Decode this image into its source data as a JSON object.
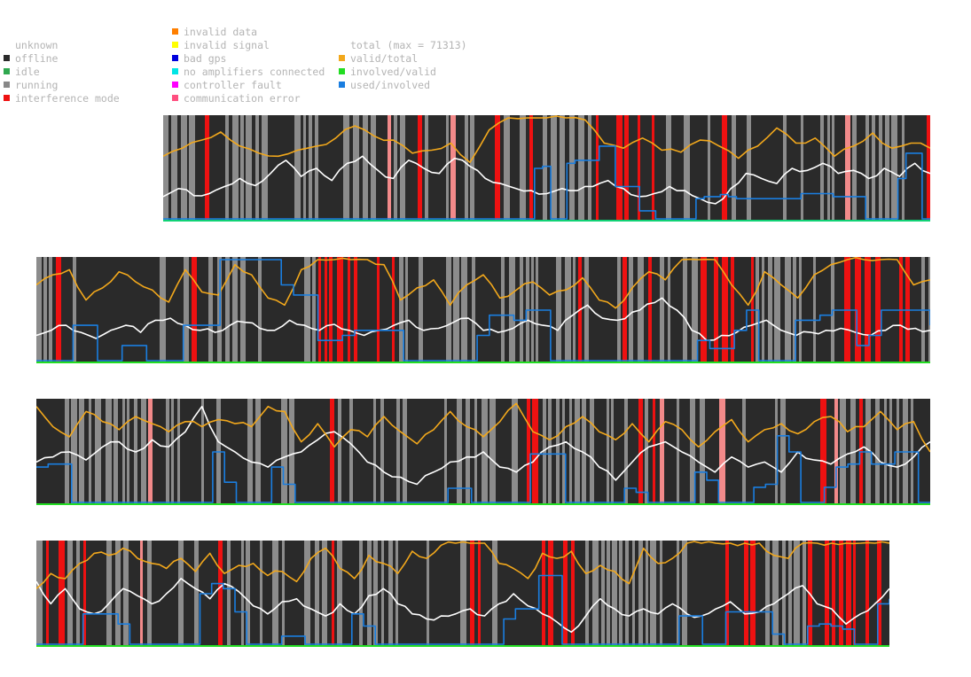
{
  "legend": {
    "status": [
      {
        "label": "unknown",
        "color": ""
      },
      {
        "label": "offline",
        "color": "#2a2a2a"
      },
      {
        "label": "idle",
        "color": "#2fa84f"
      },
      {
        "label": "running",
        "color": "#888888"
      },
      {
        "label": "interference mode",
        "color": "#ee1111"
      }
    ],
    "errors": [
      {
        "label": "invalid data",
        "color": "#ff7f00"
      },
      {
        "label": "invalid signal",
        "color": "#ffff00"
      },
      {
        "label": "bad gps",
        "color": "#0000dd"
      },
      {
        "label": "no amplifiers connected",
        "color": "#00e5e5"
      },
      {
        "label": "controller fault",
        "color": "#ff00ff"
      },
      {
        "label": "communication error",
        "color": "#ff4f80"
      }
    ],
    "lines": [
      {
        "label": "total (max = 71313)",
        "color": ""
      },
      {
        "label": "valid/total",
        "color": "#f2a81c"
      },
      {
        "label": "involved/valid",
        "color": "#22dd22"
      },
      {
        "label": "used/involved",
        "color": "#1a7ee0"
      }
    ]
  },
  "colors": {
    "offline": "#2a2a2a",
    "running": "#8c8c8c",
    "interference": "#ee1111",
    "interference_light": "#f28a8a",
    "total": "#ffffff",
    "valid_total": "#f2a81c",
    "involved_valid": "#22dd22",
    "used_involved": "#1a7ee0",
    "baseline_cyan": "#00c8c8"
  },
  "chart_data": [
    {
      "type": "line",
      "title": "",
      "series": [
        {
          "name": "total (max = 71313)",
          "color": "#ffffff",
          "values": [
            0.22,
            0.3,
            0.23,
            0.25,
            0.32,
            0.4,
            0.33,
            0.45,
            0.58,
            0.42,
            0.5,
            0.38,
            0.55,
            0.62,
            0.48,
            0.4,
            0.58,
            0.5,
            0.45,
            0.6,
            0.52,
            0.4,
            0.35,
            0.3,
            0.28,
            0.25,
            0.3,
            0.28,
            0.32,
            0.38,
            0.3,
            0.22,
            0.25,
            0.32,
            0.28,
            0.2,
            0.15,
            0.3,
            0.45,
            0.4,
            0.35,
            0.5,
            0.48,
            0.55,
            0.45,
            0.48,
            0.4,
            0.5,
            0.42,
            0.55,
            0.45
          ]
        },
        {
          "name": "valid/total",
          "color": "#f2a81c",
          "values": [
            0.62,
            0.7,
            0.78,
            0.86,
            0.72,
            0.65,
            0.62,
            0.68,
            0.72,
            0.8,
            0.92,
            0.82,
            0.78,
            0.65,
            0.68,
            0.75,
            0.56,
            0.88,
            1.0,
            1.0,
            1.0,
            1.0,
            0.98,
            0.75,
            0.7,
            0.8,
            0.68,
            0.66,
            0.78,
            0.72,
            0.6,
            0.72,
            0.9,
            0.75,
            0.8,
            0.62,
            0.72,
            0.85,
            0.7,
            0.75,
            0.7
          ]
        },
        {
          "name": "used/involved",
          "color": "#1a7ee0",
          "values": [
            0.0,
            0.0,
            0.0,
            0.0,
            0.0,
            0.0,
            0.0,
            0.0,
            0.0,
            0.0,
            0.0,
            0.0,
            0.0,
            0.0,
            0.0,
            0.0,
            0.0,
            0.0,
            0.0,
            0.0,
            0.0,
            0.0,
            0.0,
            0.0,
            0.0,
            0.0,
            0.0,
            0.0,
            0.0,
            0.0,
            0.0,
            0.0,
            0.0,
            0.0,
            0.0,
            0.0,
            0.0,
            0.0,
            0.0,
            0.0,
            0.0,
            0.0,
            0.0,
            0.0,
            0.0,
            0.0,
            0.5,
            0.52,
            0.0,
            0.0,
            0.55,
            0.58,
            0.58,
            0.58,
            0.72,
            0.72,
            0.32,
            0.32,
            0.32,
            0.08,
            0.08,
            0.0,
            0.0,
            0.0,
            0.0,
            0.0,
            0.2,
            0.22,
            0.22,
            0.24,
            0.22,
            0.2,
            0.2,
            0.2,
            0.2,
            0.2,
            0.2,
            0.2,
            0.2,
            0.25,
            0.25,
            0.25,
            0.25,
            0.22,
            0.22,
            0.22,
            0.22,
            0.0,
            0.0,
            0.0,
            0.0,
            0.4,
            0.65,
            0.65,
            0.0,
            0.0
          ]
        },
        {
          "name": "involved/valid",
          "color": "#22dd22",
          "values": [
            0.0,
            0.0
          ]
        }
      ]
    },
    {
      "type": "line",
      "title": "",
      "series": [
        {
          "name": "total (max = 71313)",
          "color": "#ffffff",
          "values": [
            0.25,
            0.3,
            0.35,
            0.28,
            0.22,
            0.3,
            0.35,
            0.28,
            0.4,
            0.42,
            0.35,
            0.3,
            0.28,
            0.35,
            0.38,
            0.32,
            0.3,
            0.4,
            0.35,
            0.3,
            0.36,
            0.3,
            0.25,
            0.3,
            0.35,
            0.4,
            0.3,
            0.32,
            0.38,
            0.42,
            0.3,
            0.28,
            0.32,
            0.4,
            0.35,
            0.3,
            0.45,
            0.55,
            0.42,
            0.4,
            0.48,
            0.56,
            0.62,
            0.5,
            0.3,
            0.2,
            0.25,
            0.28,
            0.35,
            0.4,
            0.3,
            0.25,
            0.28,
            0.3,
            0.32,
            0.28,
            0.25,
            0.3,
            0.35,
            0.32,
            0.3
          ]
        },
        {
          "name": "valid/total",
          "color": "#f2a81c",
          "values": [
            0.75,
            0.85,
            0.9,
            0.6,
            0.72,
            0.88,
            0.78,
            0.7,
            0.58,
            0.9,
            0.68,
            0.65,
            0.95,
            0.85,
            0.62,
            0.55,
            0.9,
            1.0,
            1.0,
            1.0,
            1.0,
            0.95,
            0.6,
            0.72,
            0.8,
            0.55,
            0.75,
            0.85,
            0.62,
            0.7,
            0.78,
            0.65,
            0.7,
            0.82,
            0.6,
            0.52,
            0.72,
            0.88,
            0.8,
            1.0,
            1.0,
            1.0,
            0.75,
            0.55,
            0.88,
            0.75,
            0.62,
            0.85,
            0.95,
            1.0,
            1.0,
            1.0,
            1.0,
            0.75,
            0.8
          ]
        },
        {
          "name": "used/involved",
          "color": "#1a7ee0",
          "values": [
            0.0,
            0.0,
            0.0,
            0.35,
            0.35,
            0.0,
            0.0,
            0.15,
            0.15,
            0.0,
            0.0,
            0.0,
            0.35,
            0.35,
            0.35,
            1.0,
            1.0,
            1.0,
            1.0,
            1.0,
            0.75,
            0.65,
            0.65,
            0.2,
            0.2,
            0.25,
            0.3,
            0.3,
            0.3,
            0.3,
            0.0,
            0.0,
            0.0,
            0.0,
            0.0,
            0.0,
            0.25,
            0.45,
            0.45,
            0.4,
            0.5,
            0.5,
            0.0,
            0.0,
            0.0,
            0.0,
            0.0,
            0.0,
            0.0,
            0.0,
            0.0,
            0.0,
            0.0,
            0.0,
            0.2,
            0.12,
            0.12,
            0.3,
            0.5,
            0.0,
            0.0,
            0.0,
            0.4,
            0.4,
            0.45,
            0.5,
            0.5,
            0.15,
            0.25,
            0.5,
            0.5,
            0.5,
            0.5,
            0.35
          ]
        },
        {
          "name": "involved/valid",
          "color": "#22dd22",
          "values": [
            0.0,
            0.0
          ]
        }
      ]
    },
    {
      "type": "line",
      "title": "",
      "series": [
        {
          "name": "total (max = 71313)",
          "color": "#ffffff",
          "values": [
            0.4,
            0.45,
            0.5,
            0.42,
            0.55,
            0.6,
            0.5,
            0.62,
            0.55,
            0.7,
            0.95,
            0.6,
            0.5,
            0.4,
            0.35,
            0.45,
            0.5,
            0.62,
            0.7,
            0.58,
            0.4,
            0.3,
            0.25,
            0.18,
            0.3,
            0.4,
            0.45,
            0.5,
            0.35,
            0.3,
            0.4,
            0.55,
            0.6,
            0.5,
            0.35,
            0.22,
            0.4,
            0.55,
            0.6,
            0.5,
            0.4,
            0.3,
            0.45,
            0.35,
            0.4,
            0.3,
            0.5,
            0.42,
            0.38,
            0.48,
            0.55,
            0.4,
            0.35,
            0.45,
            0.6
          ]
        },
        {
          "name": "valid/total",
          "color": "#f2a81c",
          "values": [
            0.95,
            0.75,
            0.65,
            0.9,
            0.8,
            0.72,
            0.85,
            0.78,
            0.7,
            0.8,
            0.75,
            0.82,
            0.78,
            0.75,
            0.95,
            0.9,
            0.6,
            0.78,
            0.55,
            0.72,
            0.65,
            0.85,
            0.7,
            0.58,
            0.72,
            0.9,
            0.75,
            0.65,
            0.8,
            0.98,
            0.7,
            0.62,
            0.75,
            0.85,
            0.7,
            0.62,
            0.78,
            0.6,
            0.8,
            0.72,
            0.55,
            0.7,
            0.82,
            0.6,
            0.72,
            0.78,
            0.68,
            0.8,
            0.85,
            0.7,
            0.75,
            0.9,
            0.72,
            0.8,
            0.5
          ]
        },
        {
          "name": "used/involved",
          "color": "#1a7ee0",
          "values": [
            0.35,
            0.38,
            0.38,
            0.0,
            0.0,
            0.0,
            0.0,
            0.0,
            0.0,
            0.0,
            0.0,
            0.0,
            0.0,
            0.0,
            0.0,
            0.5,
            0.2,
            0.0,
            0.0,
            0.0,
            0.35,
            0.18,
            0.0,
            0.0,
            0.0,
            0.0,
            0.0,
            0.0,
            0.0,
            0.0,
            0.0,
            0.0,
            0.0,
            0.0,
            0.0,
            0.14,
            0.14,
            0.0,
            0.0,
            0.0,
            0.0,
            0.0,
            0.48,
            0.48,
            0.48,
            0.0,
            0.0,
            0.0,
            0.0,
            0.0,
            0.14,
            0.1,
            0.0,
            0.0,
            0.0,
            0.0,
            0.3,
            0.22,
            0.0,
            0.0,
            0.0,
            0.15,
            0.18,
            0.66,
            0.5,
            0.0,
            0.0,
            0.15,
            0.35,
            0.38,
            0.5,
            0.38,
            0.38,
            0.5,
            0.5,
            0.0,
            0.0
          ]
        },
        {
          "name": "involved/valid",
          "color": "#22dd22",
          "values": [
            0.0,
            0.0
          ]
        }
      ]
    },
    {
      "type": "line",
      "title": "",
      "series": [
        {
          "name": "total (max = 71313)",
          "color": "#ffffff",
          "values": [
            0.62,
            0.4,
            0.55,
            0.35,
            0.3,
            0.4,
            0.55,
            0.48,
            0.4,
            0.5,
            0.65,
            0.55,
            0.45,
            0.6,
            0.52,
            0.38,
            0.3,
            0.42,
            0.45,
            0.35,
            0.28,
            0.4,
            0.3,
            0.48,
            0.55,
            0.4,
            0.3,
            0.25,
            0.28,
            0.3,
            0.35,
            0.28,
            0.4,
            0.5,
            0.38,
            0.3,
            0.22,
            0.12,
            0.28,
            0.45,
            0.35,
            0.28,
            0.35,
            0.3,
            0.4,
            0.3,
            0.28,
            0.35,
            0.42,
            0.3,
            0.32,
            0.4,
            0.5,
            0.58,
            0.4,
            0.35,
            0.2,
            0.3,
            0.4,
            0.55
          ]
        },
        {
          "name": "valid/total",
          "color": "#f2a81c",
          "values": [
            0.55,
            0.7,
            0.65,
            0.8,
            0.9,
            0.88,
            0.95,
            0.85,
            0.8,
            0.75,
            0.85,
            0.72,
            0.9,
            0.7,
            0.78,
            0.8,
            0.68,
            0.72,
            0.62,
            0.85,
            0.95,
            0.75,
            0.65,
            0.88,
            0.8,
            0.7,
            0.92,
            0.85,
            0.98,
            1.0,
            1.0,
            1.0,
            0.8,
            0.75,
            0.65,
            0.9,
            0.85,
            0.92,
            0.7,
            0.78,
            0.72,
            0.6,
            0.95,
            0.8,
            0.85,
            1.0,
            1.0,
            1.0,
            1.0,
            1.0,
            1.0,
            0.88,
            0.85,
            1.0,
            1.0,
            1.0,
            1.0,
            1.0,
            1.0,
            1.0
          ]
        },
        {
          "name": "used/involved",
          "color": "#1a7ee0",
          "values": [
            0.0,
            0.0,
            0.0,
            0.0,
            0.3,
            0.3,
            0.3,
            0.2,
            0.0,
            0.0,
            0.0,
            0.0,
            0.0,
            0.0,
            0.5,
            0.6,
            0.55,
            0.32,
            0.0,
            0.0,
            0.0,
            0.08,
            0.08,
            0.0,
            0.0,
            0.0,
            0.0,
            0.3,
            0.18,
            0.0,
            0.0,
            0.0,
            0.0,
            0.0,
            0.0,
            0.0,
            0.0,
            0.0,
            0.0,
            0.0,
            0.25,
            0.35,
            0.35,
            0.68,
            0.68,
            0.0,
            0.0,
            0.0,
            0.0,
            0.0,
            0.0,
            0.0,
            0.0,
            0.0,
            0.0,
            0.28,
            0.28,
            0.0,
            0.0,
            0.32,
            0.32,
            0.32,
            0.32,
            0.1,
            0.0,
            0.0,
            0.18,
            0.2,
            0.18,
            0.15,
            0.0,
            0.0,
            0.4,
            0.45
          ]
        },
        {
          "name": "involved/valid",
          "color": "#22dd22",
          "values": [
            0.0,
            0.0
          ]
        }
      ]
    }
  ]
}
